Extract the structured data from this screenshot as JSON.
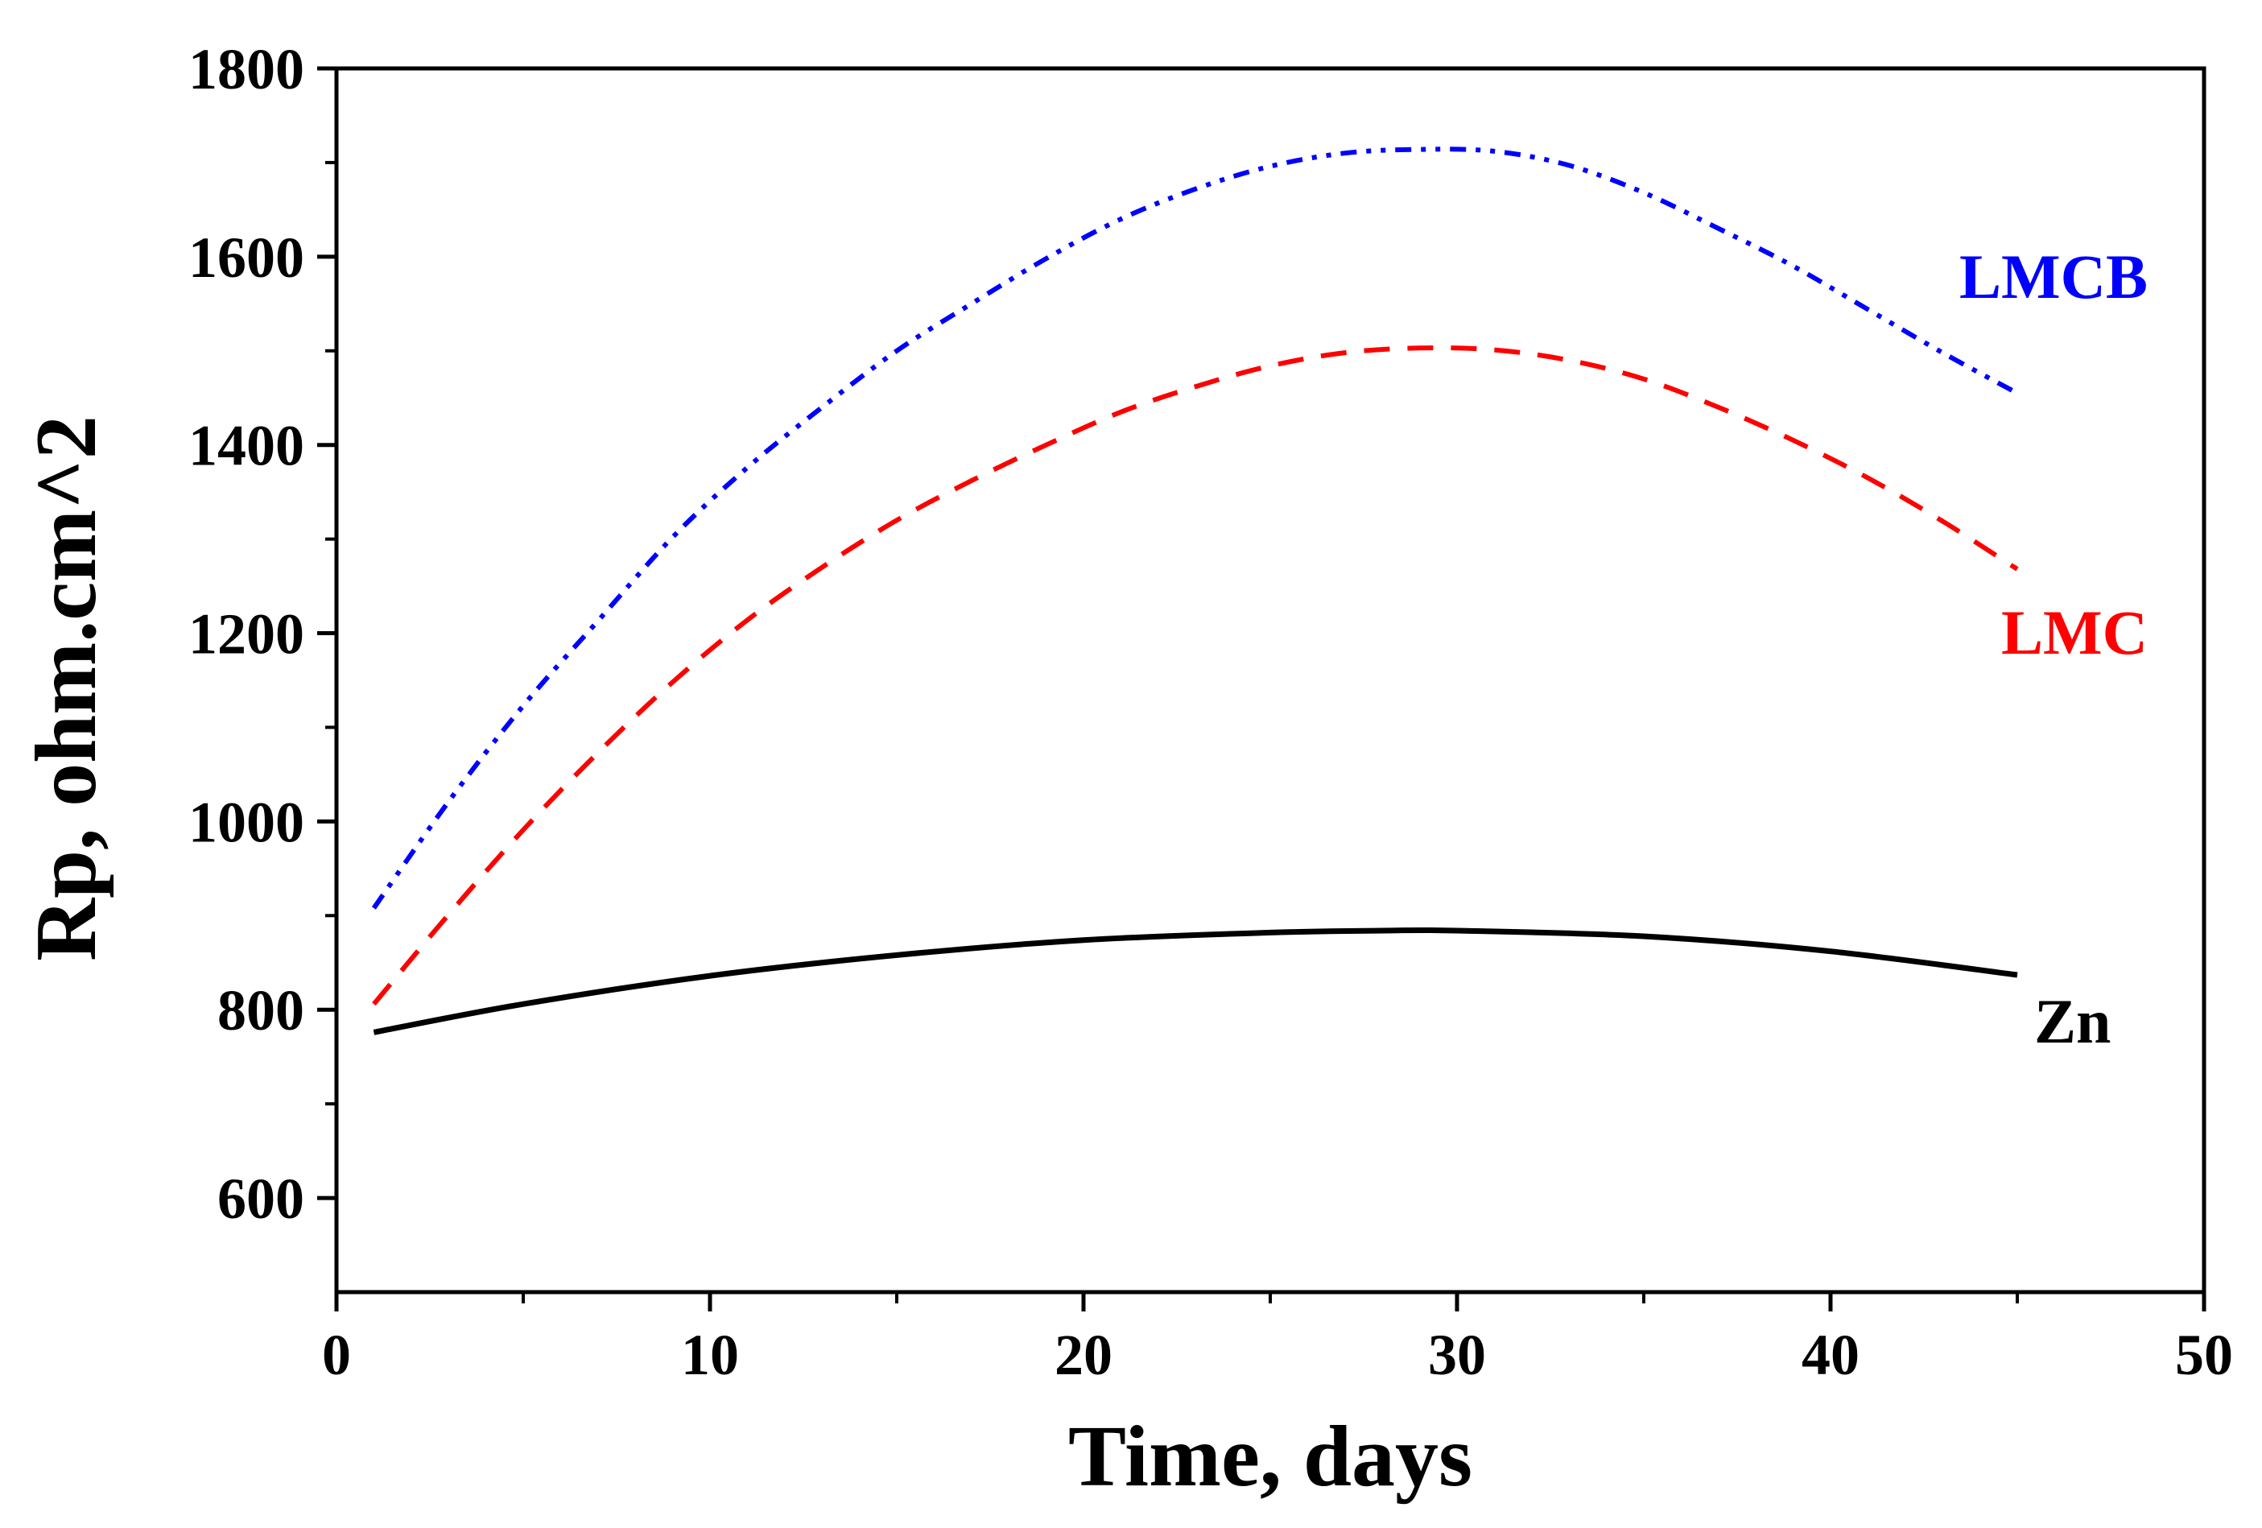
{
  "chart_data": {
    "type": "line",
    "title": "",
    "xlabel": "Time, days",
    "ylabel": "Rp, ohm.cm^2",
    "xlim": [
      0,
      50
    ],
    "ylim": [
      500,
      1800
    ],
    "x_ticks": [
      0,
      10,
      20,
      30,
      40,
      50
    ],
    "y_ticks": [
      600,
      800,
      1000,
      1200,
      1400,
      1600,
      1800
    ],
    "x_tick_labels": [
      "0",
      "10",
      "20",
      "30",
      "40",
      "50"
    ],
    "y_tick_labels": [
      "600",
      "800",
      "1000",
      "1200",
      "1400",
      "1600",
      "1800"
    ],
    "x_minor_step": 5,
    "y_minor_step": 100,
    "grid": false,
    "legend": "inline labels at right end of each curve",
    "series": [
      {
        "name": "LMCB",
        "label": "LMCB",
        "color": "#0000ff",
        "style": "dash-dot-dot",
        "x": [
          1,
          3,
          5,
          7,
          9,
          11,
          13,
          15,
          17,
          19,
          21,
          23,
          25,
          27,
          29,
          31,
          33,
          35,
          37,
          39,
          41,
          43,
          45
        ],
        "y": [
          908,
          1021,
          1123,
          1213,
          1302,
          1376,
          1440,
          1500,
          1550,
          1598,
          1640,
          1672,
          1696,
          1710,
          1714,
          1712,
          1697,
          1668,
          1630,
          1590,
          1544,
          1498,
          1455
        ]
      },
      {
        "name": "LMC",
        "label": "LMC",
        "color": "#ff0000",
        "style": "dashed",
        "x": [
          1,
          3,
          5,
          7,
          9,
          11,
          13,
          15,
          17,
          19,
          21,
          23,
          25,
          27,
          29,
          31,
          33,
          35,
          37,
          39,
          41,
          43,
          45
        ],
        "y": [
          806,
          901,
          991,
          1073,
          1148,
          1214,
          1270,
          1320,
          1362,
          1400,
          1435,
          1462,
          1484,
          1498,
          1503,
          1501,
          1490,
          1470,
          1440,
          1405,
          1365,
          1319,
          1268
        ]
      },
      {
        "name": "Zn",
        "label": "Zn",
        "color": "#000000",
        "style": "solid",
        "x": [
          1,
          5,
          10,
          15,
          20,
          25,
          28,
          30,
          35,
          40,
          45
        ],
        "y": [
          776,
          806,
          836,
          858,
          874,
          882,
          884,
          884,
          878,
          862,
          837
        ]
      }
    ]
  }
}
